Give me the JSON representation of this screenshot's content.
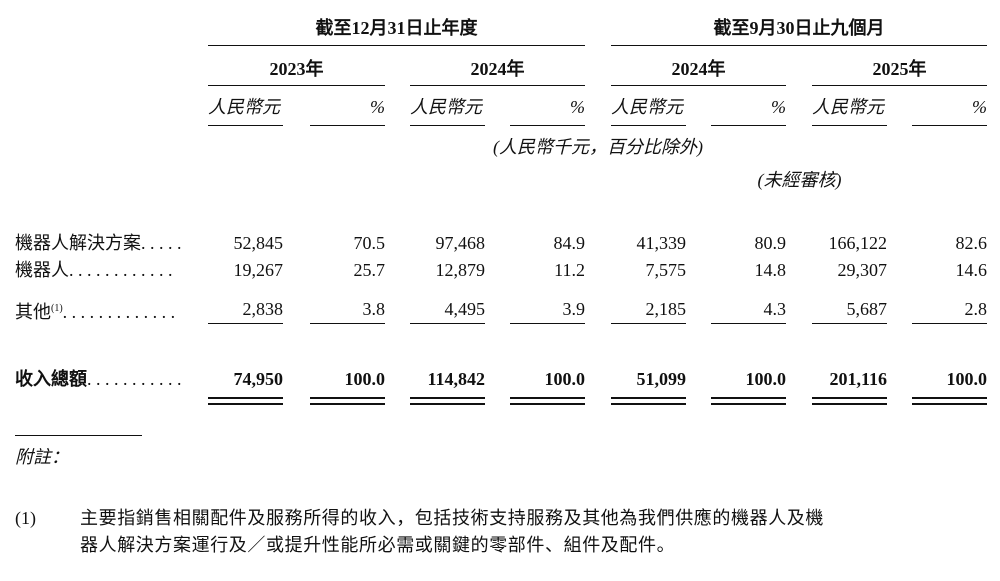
{
  "header": {
    "groups": [
      {
        "title": "截至12月31日止年度",
        "years": [
          "2023年",
          "2024年"
        ]
      },
      {
        "title": "截至9月30日止九個月",
        "years": [
          "2024年",
          "2025年"
        ]
      }
    ],
    "units": [
      "人民幣元",
      "%",
      "人民幣元",
      "%",
      "人民幣元",
      "%",
      "人民幣元",
      "%"
    ],
    "unit_note": "(人民幣千元，百分比除外)",
    "audit_note": "(未經審核)"
  },
  "table": {
    "rows": [
      {
        "label": "機器人解決方案",
        "leader": ". . . . .",
        "values": [
          "52,845",
          "70.5",
          "97,468",
          "84.9",
          "41,339",
          "80.9",
          "166,122",
          "82.6"
        ]
      },
      {
        "label": "機器人",
        "leader": ". . . . . . . . . . . .",
        "values": [
          "19,267",
          "25.7",
          "12,879",
          "11.2",
          "7,575",
          "14.8",
          "29,307",
          "14.6"
        ]
      },
      {
        "label": "其他",
        "note_ref": "(1)",
        "leader": ". . . . . . . . . . . . .",
        "values": [
          "2,838",
          "3.8",
          "4,495",
          "3.9",
          "2,185",
          "4.3",
          "5,687",
          "2.8"
        ]
      }
    ],
    "total": {
      "label": "收入總額",
      "leader": ". . . . . . . . . . .",
      "values": [
        "74,950",
        "100.0",
        "114,842",
        "100.0",
        "51,099",
        "100.0",
        "201,116",
        "100.0"
      ]
    }
  },
  "notes": {
    "heading": "附註：",
    "items": [
      {
        "marker": "(1)",
        "lines": [
          "主要指銷售相關配件及服務所得的收入，包括技術支持服務及其他為我們供應的機器人及機",
          "器人解決方案運行及／或提升性能所必需或關鍵的零部件、組件及配件。"
        ]
      }
    ]
  }
}
